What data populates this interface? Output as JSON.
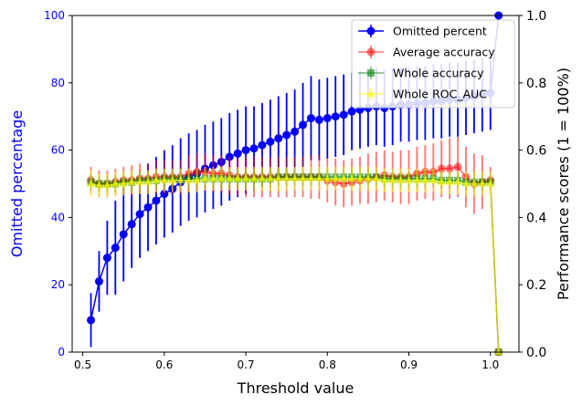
{
  "chart_data": {
    "type": "line",
    "xlabel": "Threshold value",
    "ylabel_left": "Omitted percentage",
    "ylabel_right": "Performance scores (1 = 100%)",
    "xlim": [
      0.487,
      1.035
    ],
    "ylim_left": [
      0,
      100
    ],
    "ylim_right": [
      0,
      1
    ],
    "x_ticks": [
      "0.5",
      "0.6",
      "0.7",
      "0.8",
      "0.9",
      "1.0"
    ],
    "y_left_ticks": [
      "0",
      "20",
      "40",
      "60",
      "80",
      "100"
    ],
    "y_right_ticks": [
      "0.0",
      "0.2",
      "0.4",
      "0.6",
      "0.8",
      "1.0"
    ],
    "legend_position": "top-right",
    "x": [
      0.51,
      0.52,
      0.53,
      0.54,
      0.55,
      0.56,
      0.57,
      0.58,
      0.59,
      0.6,
      0.61,
      0.62,
      0.63,
      0.64,
      0.65,
      0.66,
      0.67,
      0.68,
      0.69,
      0.7,
      0.71,
      0.72,
      0.73,
      0.74,
      0.75,
      0.76,
      0.77,
      0.78,
      0.79,
      0.8,
      0.81,
      0.82,
      0.83,
      0.84,
      0.85,
      0.86,
      0.87,
      0.88,
      0.89,
      0.9,
      0.91,
      0.92,
      0.93,
      0.94,
      0.95,
      0.96,
      0.97,
      0.98,
      0.99,
      1.0,
      1.01
    ],
    "series": [
      {
        "name": "Omitted percent",
        "axis": "left",
        "color": "#0000ff",
        "marker": "circle",
        "values": [
          9.5,
          21,
          28,
          31,
          35,
          38,
          41,
          43,
          45,
          47,
          48.5,
          50.5,
          52,
          53,
          54.5,
          55.5,
          56.5,
          58,
          59,
          60,
          60.5,
          61.5,
          62.5,
          63.5,
          64.5,
          65.5,
          67.5,
          69.5,
          69,
          69.5,
          70,
          70.5,
          71.5,
          72,
          72.5,
          73,
          72.5,
          73,
          73.5,
          73.5,
          74,
          74,
          74.5,
          74.5,
          75,
          75,
          75.5,
          76,
          76.5,
          77,
          100
        ],
        "errors": [
          8,
          9,
          11,
          14,
          14,
          13,
          13,
          13,
          13,
          13,
          13,
          13,
          13,
          13,
          13,
          13,
          13,
          13,
          13,
          13,
          12.5,
          12.5,
          12.5,
          12.5,
          12.5,
          12.5,
          12.5,
          12.5,
          12,
          12,
          12,
          12,
          11.5,
          11.5,
          11.5,
          11.5,
          11.5,
          11.5,
          11,
          11,
          11,
          11,
          11,
          11,
          11,
          11,
          11,
          11,
          11,
          11,
          0
        ]
      },
      {
        "name": "Average accuracy",
        "axis": "right",
        "color": "#ff0000",
        "marker": "circle",
        "values": [
          0.51,
          0.5,
          0.5,
          0.505,
          0.51,
          0.51,
          0.515,
          0.515,
          0.52,
          0.52,
          0.52,
          0.52,
          0.53,
          0.535,
          0.535,
          0.53,
          0.53,
          0.525,
          0.52,
          0.52,
          0.52,
          0.52,
          0.52,
          0.52,
          0.52,
          0.52,
          0.52,
          0.52,
          0.52,
          0.51,
          0.505,
          0.5,
          0.505,
          0.51,
          0.515,
          0.52,
          0.525,
          0.52,
          0.52,
          0.52,
          0.53,
          0.535,
          0.535,
          0.545,
          0.545,
          0.55,
          0.52,
          0.5,
          0.505,
          0.51,
          0.0
        ],
        "errors": [
          0.04,
          0.04,
          0.04,
          0.04,
          0.04,
          0.045,
          0.045,
          0.045,
          0.05,
          0.05,
          0.05,
          0.05,
          0.055,
          0.055,
          0.055,
          0.055,
          0.055,
          0.055,
          0.055,
          0.06,
          0.06,
          0.06,
          0.06,
          0.06,
          0.06,
          0.06,
          0.06,
          0.065,
          0.065,
          0.065,
          0.07,
          0.07,
          0.07,
          0.07,
          0.075,
          0.075,
          0.075,
          0.075,
          0.08,
          0.08,
          0.08,
          0.08,
          0.085,
          0.085,
          0.09,
          0.09,
          0.09,
          0.09,
          0.08,
          0.04,
          0.0
        ]
      },
      {
        "name": "Whole accuracy",
        "axis": "right",
        "color": "#008000",
        "marker": "square",
        "values": [
          0.505,
          0.5,
          0.5,
          0.5,
          0.505,
          0.505,
          0.51,
          0.51,
          0.51,
          0.515,
          0.515,
          0.515,
          0.515,
          0.515,
          0.515,
          0.515,
          0.515,
          0.515,
          0.515,
          0.515,
          0.515,
          0.515,
          0.515,
          0.52,
          0.52,
          0.52,
          0.52,
          0.52,
          0.52,
          0.52,
          0.52,
          0.52,
          0.52,
          0.52,
          0.52,
          0.52,
          0.515,
          0.515,
          0.515,
          0.515,
          0.515,
          0.515,
          0.515,
          0.51,
          0.51,
          0.51,
          0.505,
          0.505,
          0.505,
          0.505,
          0.0
        ],
        "errors": [
          0.025,
          0.025,
          0.025,
          0.025,
          0.025,
          0.025,
          0.025,
          0.025,
          0.025,
          0.025,
          0.025,
          0.025,
          0.025,
          0.025,
          0.025,
          0.025,
          0.025,
          0.025,
          0.025,
          0.025,
          0.025,
          0.025,
          0.025,
          0.025,
          0.025,
          0.025,
          0.025,
          0.025,
          0.025,
          0.025,
          0.025,
          0.025,
          0.025,
          0.025,
          0.025,
          0.025,
          0.025,
          0.025,
          0.025,
          0.025,
          0.025,
          0.025,
          0.025,
          0.025,
          0.025,
          0.025,
          0.025,
          0.025,
          0.025,
          0.025,
          0.0
        ]
      },
      {
        "name": "Whole ROC_AUC",
        "axis": "right",
        "color": "#ffff00",
        "marker": "triangle",
        "values": [
          0.5,
          0.495,
          0.495,
          0.5,
          0.5,
          0.505,
          0.505,
          0.505,
          0.51,
          0.51,
          0.51,
          0.51,
          0.51,
          0.51,
          0.515,
          0.515,
          0.515,
          0.515,
          0.515,
          0.515,
          0.515,
          0.515,
          0.515,
          0.515,
          0.515,
          0.515,
          0.515,
          0.515,
          0.515,
          0.515,
          0.515,
          0.515,
          0.515,
          0.515,
          0.515,
          0.515,
          0.51,
          0.51,
          0.51,
          0.51,
          0.51,
          0.51,
          0.51,
          0.505,
          0.505,
          0.505,
          0.5,
          0.5,
          0.5,
          0.5,
          0.0
        ],
        "errors": [
          0.04,
          0.035,
          0.035,
          0.035,
          0.035,
          0.035,
          0.035,
          0.035,
          0.035,
          0.035,
          0.035,
          0.035,
          0.035,
          0.035,
          0.035,
          0.035,
          0.035,
          0.035,
          0.035,
          0.035,
          0.035,
          0.035,
          0.035,
          0.035,
          0.035,
          0.035,
          0.035,
          0.035,
          0.035,
          0.035,
          0.035,
          0.035,
          0.035,
          0.035,
          0.035,
          0.035,
          0.035,
          0.035,
          0.035,
          0.035,
          0.035,
          0.035,
          0.035,
          0.035,
          0.035,
          0.035,
          0.035,
          0.035,
          0.035,
          0.035,
          0.0
        ]
      }
    ]
  }
}
